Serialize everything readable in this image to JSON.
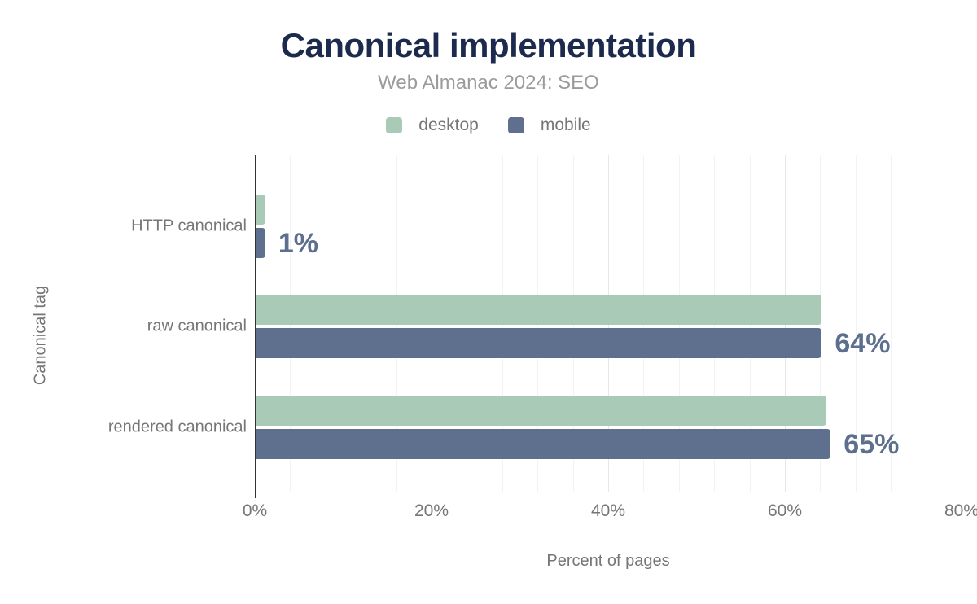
{
  "header": {
    "title": "Canonical implementation",
    "subtitle": "Web Almanac 2024: SEO"
  },
  "legend": {
    "position": "top",
    "items": [
      {
        "label": "desktop",
        "color": "#a9cab6"
      },
      {
        "label": "mobile",
        "color": "#5e708e"
      }
    ]
  },
  "chart_data": {
    "type": "bar",
    "orientation": "horizontal",
    "title": "Canonical implementation",
    "subtitle": "Web Almanac 2024: SEO",
    "categories": [
      "HTTP canonical",
      "raw canonical",
      "rendered canonical"
    ],
    "series": [
      {
        "name": "desktop",
        "color": "#a9cab6",
        "values": [
          1,
          64,
          64.5
        ]
      },
      {
        "name": "mobile",
        "color": "#5e708e",
        "values": [
          1,
          64,
          65
        ]
      }
    ],
    "data_labels": {
      "labeled_series": "mobile",
      "texts": [
        "1%",
        "64%",
        "65%"
      ]
    },
    "xlabel": "Percent of pages",
    "ylabel": "Canonical tag",
    "xlim": [
      0,
      80
    ],
    "x_ticks": [
      {
        "value": 0,
        "label": "0%"
      },
      {
        "value": 20,
        "label": "20%"
      },
      {
        "value": 40,
        "label": "40%"
      },
      {
        "value": 60,
        "label": "60%"
      },
      {
        "value": 80,
        "label": "80%"
      }
    ],
    "minor_grid_step_percent": 4,
    "major_grid_step_percent": 20,
    "grid": "vertical-only",
    "legend_position": "top"
  },
  "colors": {
    "title-color": "#1c2b4d",
    "subtitle-color": "#9b9b9b",
    "axis-text": "#767676",
    "data-label": "#5d6f8e",
    "grid-minor": "#f3f3f3",
    "grid-major": "#e7e7e7",
    "axis-line": "#333333"
  }
}
